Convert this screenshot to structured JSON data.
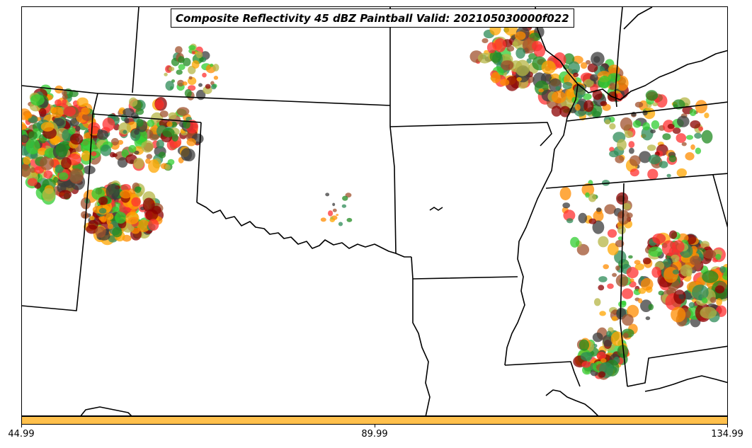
{
  "title": "Composite Reflectivity 45 dBZ Paintball Valid: 202105030000f022",
  "colorbar": {
    "color": "#FFC04C",
    "ticks": [
      "44.99",
      "89.99",
      "134.99"
    ]
  },
  "palette": [
    "#FF3030",
    "#FF8C00",
    "#A0522D",
    "#B5B545",
    "#32CD32",
    "#228B22",
    "#3C3C3C",
    "#8B0000",
    "#FFA500",
    "#2E8B57"
  ]
}
